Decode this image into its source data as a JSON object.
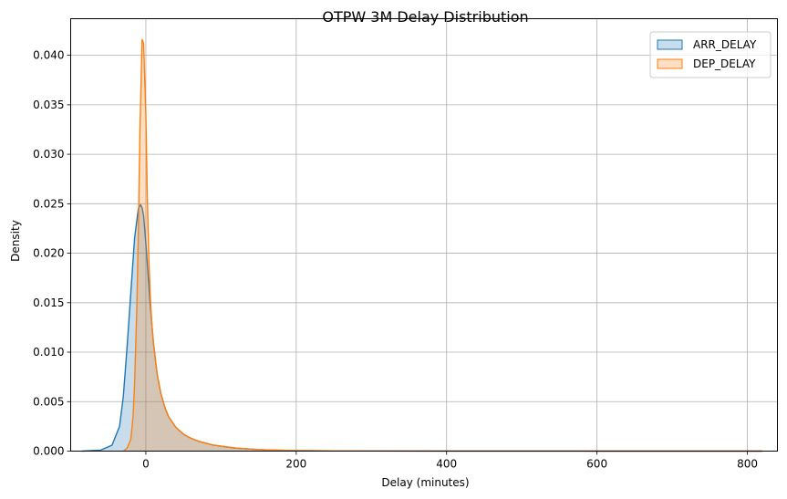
{
  "chart_data": {
    "type": "area",
    "title": "OTPW 3M Delay Distribution",
    "xlabel": "Delay (minutes)",
    "ylabel": "Density",
    "xlim": [
      -100,
      840
    ],
    "ylim": [
      0,
      0.0437
    ],
    "xticks": [
      0,
      200,
      400,
      600,
      800
    ],
    "yticks": [
      0.0,
      0.005,
      0.01,
      0.015,
      0.02,
      0.025,
      0.03,
      0.035,
      0.04
    ],
    "ytick_labels": [
      "0.000",
      "0.005",
      "0.010",
      "0.015",
      "0.020",
      "0.025",
      "0.030",
      "0.035",
      "0.040"
    ],
    "grid": true,
    "legend_position": "top-right",
    "series": [
      {
        "name": "ARR_DELAY",
        "color": "#1f77b4",
        "fill_opacity": 0.25,
        "x": [
          -85,
          -60,
          -45,
          -35,
          -30,
          -25,
          -20,
          -15,
          -10,
          -7,
          -5,
          -3,
          0,
          3,
          5,
          8,
          10,
          15,
          20,
          25,
          30,
          40,
          50,
          60,
          70,
          80,
          90,
          100,
          120,
          140,
          160,
          180,
          200,
          250,
          300,
          400,
          500,
          600,
          700,
          800,
          820
        ],
        "y": [
          0.0,
          0.0001,
          0.0006,
          0.0025,
          0.0055,
          0.0105,
          0.016,
          0.0215,
          0.0245,
          0.0249,
          0.0246,
          0.0238,
          0.021,
          0.0178,
          0.0155,
          0.0128,
          0.011,
          0.0078,
          0.0058,
          0.0045,
          0.0035,
          0.0024,
          0.0017,
          0.0013,
          0.001,
          0.0008,
          0.0006,
          0.0005,
          0.0003,
          0.0002,
          0.00012,
          8e-05,
          5e-05,
          3e-05,
          2e-05,
          1e-05,
          1e-05,
          0.0,
          0.0,
          0.0,
          0.0
        ]
      },
      {
        "name": "DEP_DELAY",
        "color": "#ff7f0e",
        "fill_opacity": 0.25,
        "x": [
          -30,
          -25,
          -20,
          -17,
          -15,
          -12,
          -10,
          -8,
          -5,
          -3,
          0,
          2,
          4,
          6,
          8,
          10,
          15,
          20,
          25,
          30,
          40,
          50,
          60,
          70,
          80,
          90,
          100,
          120,
          140,
          160,
          180,
          200,
          250,
          300,
          400,
          500,
          600,
          700,
          800,
          820
        ],
        "y": [
          0.0,
          0.0003,
          0.0012,
          0.0035,
          0.0068,
          0.0145,
          0.022,
          0.032,
          0.0416,
          0.0412,
          0.034,
          0.0255,
          0.0195,
          0.0155,
          0.0128,
          0.011,
          0.0078,
          0.0058,
          0.0045,
          0.0035,
          0.0024,
          0.0017,
          0.0013,
          0.001,
          0.0008,
          0.0006,
          0.0005,
          0.0003,
          0.0002,
          0.00012,
          8e-05,
          5e-05,
          3e-05,
          2e-05,
          1e-05,
          1e-05,
          0.0,
          0.0,
          0.0,
          0.0
        ]
      }
    ]
  }
}
